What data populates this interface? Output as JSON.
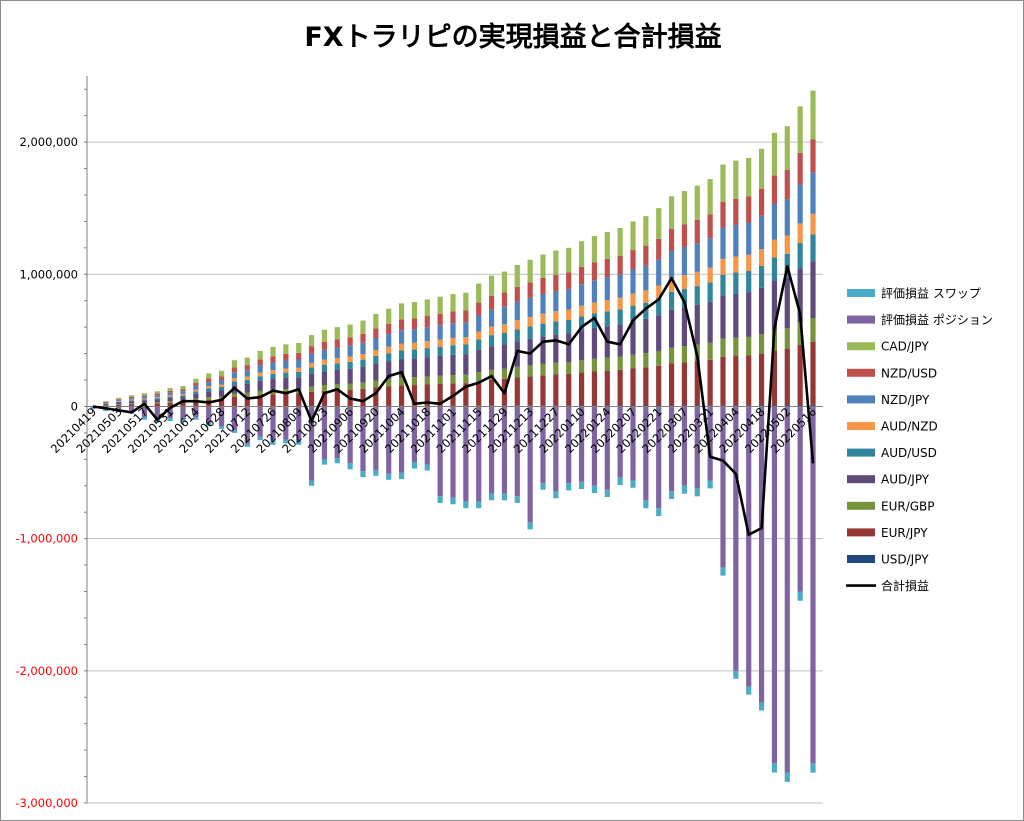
{
  "chart_data": {
    "type": "bar",
    "stacked": true,
    "title": "FXトラリピの実現損益と合計損益",
    "xlabel": "",
    "ylabel": "",
    "ylim": [
      -3000000,
      2500000
    ],
    "y_ticks": [
      -3000000,
      -2000000,
      -1000000,
      0,
      1000000,
      2000000
    ],
    "y_tick_labels": [
      "-3,000,000",
      "-2,000,000",
      "-1,000,000",
      "0",
      "1,000,000",
      "2,000,000"
    ],
    "grid": true,
    "legend_position": "right",
    "x_tick_labels": [
      "20210419",
      "20210503",
      "20210517",
      "20210531",
      "20210614",
      "20210628",
      "20210712",
      "20210726",
      "20210809",
      "20210823",
      "20210906",
      "20210920",
      "20211004",
      "20211018",
      "20211101",
      "20211115",
      "20211129",
      "20211213",
      "20211227",
      "20220110",
      "20220124",
      "20220207",
      "20220221",
      "20220307",
      "20220321",
      "20220404",
      "20220418",
      "20220502",
      "20220516"
    ],
    "positive_total": [
      5000,
      40000,
      65000,
      85000,
      100000,
      115000,
      140000,
      155000,
      210000,
      250000,
      270000,
      350000,
      370000,
      420000,
      450000,
      470000,
      480000,
      540000,
      580000,
      600000,
      620000,
      650000,
      700000,
      740000,
      780000,
      790000,
      810000,
      830000,
      850000,
      860000,
      930000,
      990000,
      1020000,
      1070000,
      1110000,
      1150000,
      1180000,
      1200000,
      1250000,
      1290000,
      1320000,
      1350000,
      1400000,
      1440000,
      1500000,
      1590000,
      1630000,
      1670000,
      1720000,
      1830000,
      1860000,
      1880000,
      1950000,
      2070000,
      2120000,
      2270000,
      2390000
    ],
    "swap_eval": [
      -15000,
      -15000,
      -10000,
      -15000,
      -20000,
      -20000,
      -20000,
      -20000,
      -20000,
      -20000,
      -20000,
      -20000,
      -25000,
      -25000,
      -30000,
      -30000,
      -30000,
      -40000,
      -40000,
      -40000,
      -45000,
      -45000,
      -45000,
      -45000,
      -50000,
      -50000,
      -45000,
      -50000,
      -50000,
      -50000,
      -50000,
      -50000,
      -50000,
      -50000,
      -50000,
      -50000,
      -55000,
      -55000,
      -55000,
      -55000,
      -55000,
      -55000,
      -55000,
      -60000,
      -60000,
      -60000,
      -60000,
      -60000,
      -60000,
      -60000,
      -60000,
      -60000,
      -60000,
      -70000,
      -70000,
      -70000,
      -70000
    ],
    "position_eval": [
      -5000,
      -20000,
      -20000,
      -40000,
      -80000,
      -100000,
      -90000,
      -100000,
      -80000,
      -130000,
      -150000,
      -180000,
      -280000,
      -230000,
      -260000,
      -250000,
      -260000,
      -560000,
      -400000,
      -390000,
      -430000,
      -490000,
      -480000,
      -510000,
      -500000,
      -420000,
      -440000,
      -680000,
      -690000,
      -720000,
      -720000,
      -660000,
      -660000,
      -680000,
      -880000,
      -580000,
      -640000,
      -580000,
      -570000,
      -600000,
      -630000,
      -540000,
      -560000,
      -710000,
      -770000,
      -640000,
      -600000,
      -620000,
      -560000,
      -1220000,
      -2000000,
      -2120000,
      -2240000,
      -2700000,
      -2770000,
      -1400000,
      -2700000
    ],
    "cumulative_total": [
      0,
      -15000,
      -30000,
      -45000,
      20000,
      -100000,
      -10000,
      40000,
      40000,
      30000,
      50000,
      140000,
      60000,
      70000,
      120000,
      100000,
      130000,
      -110000,
      100000,
      130000,
      60000,
      40000,
      100000,
      230000,
      260000,
      20000,
      30000,
      20000,
      80000,
      150000,
      180000,
      230000,
      100000,
      420000,
      400000,
      490000,
      500000,
      470000,
      600000,
      670000,
      490000,
      470000,
      650000,
      740000,
      810000,
      970000,
      790000,
      380000,
      -380000,
      -410000,
      -510000,
      -970000,
      -920000,
      590000,
      1060000,
      700000,
      -430000
    ],
    "series": [
      {
        "name": "評価損益 スワップ",
        "color": "#4bacc6",
        "kind": "eval"
      },
      {
        "name": "評価損益 ポジション",
        "color": "#8064a2",
        "kind": "eval"
      },
      {
        "name": "CAD/JPY",
        "color": "#9bbb59",
        "share": 0.155
      },
      {
        "name": "NZD/USD",
        "color": "#c0504d",
        "share": 0.105
      },
      {
        "name": "NZD/JPY",
        "color": "#4f81bd",
        "share": 0.13
      },
      {
        "name": "AUD/NZD",
        "color": "#f79646",
        "share": 0.065
      },
      {
        "name": "AUD/USD",
        "color": "#31859c",
        "share": 0.085
      },
      {
        "name": "AUD/JPY",
        "color": "#604a7b",
        "share": 0.18
      },
      {
        "name": "EUR/GBP",
        "color": "#77933c",
        "share": 0.075
      },
      {
        "name": "EUR/JPY",
        "color": "#953735",
        "share": 0.2
      },
      {
        "name": "USD/JPY",
        "color": "#1f497d",
        "share": 0.005
      },
      {
        "name": "合計損益",
        "color": "#000000",
        "kind": "line"
      }
    ]
  }
}
